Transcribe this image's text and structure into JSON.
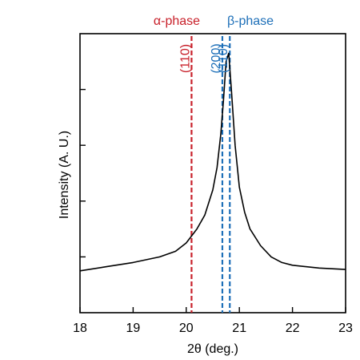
{
  "chart_data": {
    "type": "line",
    "xlabel": "2θ (deg.)",
    "ylabel": "Intensity (A. U.)",
    "xlim": [
      18,
      23
    ],
    "ylim": [
      0,
      1
    ],
    "x_ticks": [
      "18",
      "19",
      "20",
      "21",
      "22",
      "23"
    ],
    "y_ticks_labeled": false,
    "grid": false,
    "series": [
      {
        "x": [
          18.0,
          18.5,
          19.0,
          19.5,
          19.8,
          20.0,
          20.2,
          20.35,
          20.5,
          20.58,
          20.65,
          20.7,
          20.75,
          20.8,
          20.85,
          20.92,
          21.0,
          21.1,
          21.2,
          21.4,
          21.6,
          21.8,
          22.0,
          22.5,
          23.0
        ],
        "y": [
          0.15,
          0.165,
          0.18,
          0.2,
          0.22,
          0.25,
          0.3,
          0.35,
          0.44,
          0.52,
          0.64,
          0.76,
          0.9,
          0.93,
          0.8,
          0.6,
          0.45,
          0.36,
          0.3,
          0.24,
          0.2,
          0.18,
          0.17,
          0.16,
          0.155
        ]
      }
    ],
    "reference_lines": [
      {
        "x": 20.1,
        "label": "(110)",
        "group": "α-phase",
        "color": "#c8202a"
      },
      {
        "x": 20.68,
        "label": "(200)",
        "group": "β-phase",
        "color": "#1d6fb8"
      },
      {
        "x": 20.82,
        "label": "(110)",
        "group": "β-phase",
        "color": "#1d6fb8"
      }
    ],
    "phase_labels": [
      {
        "text": "α-phase",
        "color": "#c8202a"
      },
      {
        "text": "β-phase",
        "color": "#1d6fb8"
      }
    ]
  }
}
